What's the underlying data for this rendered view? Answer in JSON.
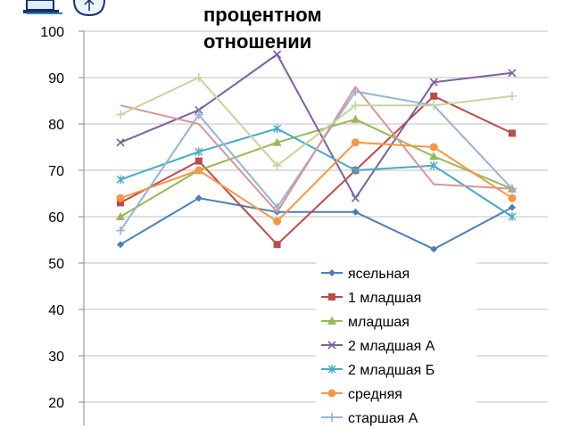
{
  "title_lines": [
    "процентном",
    "отношении"
  ],
  "chart_data": {
    "type": "line",
    "categories": [
      "",
      "",
      "",
      "",
      "",
      ""
    ],
    "ylim": [
      15,
      100
    ],
    "yticks": [
      20,
      30,
      40,
      50,
      60,
      70,
      80,
      90,
      100
    ],
    "grid": true,
    "legend_position": "inside-bottom-right",
    "series": [
      {
        "name": "ясельная",
        "color": "#4a7ebb",
        "marker": "diamond",
        "values": [
          54,
          64,
          61,
          61,
          53,
          62
        ]
      },
      {
        "name": "1 младшая",
        "color": "#be4b48",
        "marker": "square",
        "values": [
          63,
          72,
          54,
          70,
          86,
          78
        ]
      },
      {
        "name": "младшая",
        "color": "#98b954",
        "marker": "triangle",
        "values": [
          60,
          70,
          76,
          81,
          73,
          66
        ]
      },
      {
        "name": "2 младшая А",
        "color": "#7d60a0",
        "marker": "x",
        "values": [
          76,
          83,
          95,
          64,
          89,
          91
        ]
      },
      {
        "name": "2 младшая Б",
        "color": "#46aac5",
        "marker": "star",
        "values": [
          68,
          74,
          79,
          70,
          71,
          60
        ]
      },
      {
        "name": "средняя",
        "color": "#f79646",
        "marker": "circle",
        "values": [
          64,
          70,
          59,
          76,
          75,
          64
        ]
      },
      {
        "name": "старшая А",
        "color": "#95b3d7",
        "marker": "plus",
        "values": [
          57,
          82,
          62,
          87,
          84,
          66
        ]
      },
      {
        "name": "",
        "color": "#d99694",
        "marker": "none",
        "values": [
          84,
          80,
          61,
          88,
          67,
          66
        ]
      },
      {
        "name": "",
        "color": "#c3d69b",
        "marker": "plus",
        "values": [
          82,
          90,
          71,
          84,
          84,
          86
        ]
      }
    ]
  }
}
